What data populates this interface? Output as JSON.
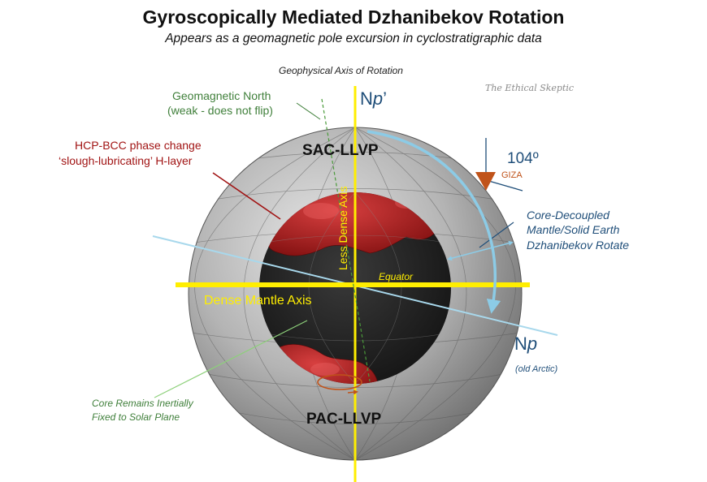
{
  "title": "Gyroscopically Mediated Dzhanibekov Rotation",
  "subtitle": "Appears as a geomagnetic pole excursion in cyclostratigraphic data",
  "axis_of_rotation_label": "Geophysical Axis of Rotation",
  "watermark": "The Ethical Skeptic",
  "geomagnetic_north": [
    "Geomagnetic North",
    "(weak - does not flip)"
  ],
  "phase_change": [
    "HCP-BCC phase change",
    "‘slough-lubricating’ H-layer"
  ],
  "sac_llvp": "SAC-LLVP",
  "pac_llvp": "PAC-LLVP",
  "less_dense_axis": "Less Dense Axis",
  "dense_mantle_axis": "Dense Mantle Axis",
  "equator": "Equator",
  "np_prime": {
    "base": "N",
    "italic": "p",
    "suffix": "’"
  },
  "np": {
    "base": "N",
    "italic": "p"
  },
  "old_arctic": "(old Arctic)",
  "giza_angle": "104º",
  "giza": "GIZA",
  "core_decoupled": [
    "Core-Decoupled",
    "Mantle/Solid Earth",
    "Dzhanibekov Rotate"
  ],
  "core_inertial": [
    "Core Remains Inertially",
    "Fixed to Solar Plane"
  ],
  "colors": {
    "yellow_axis": "#ffee00",
    "tilted_axis": "#a8d8ec",
    "rotation_arrow": "#8ccbe6",
    "core_red": "#b01818",
    "giza_orange": "#c0531a",
    "green_text": "#3f7f3a",
    "red_text": "#a11414",
    "blue_text": "#1f4e79"
  }
}
